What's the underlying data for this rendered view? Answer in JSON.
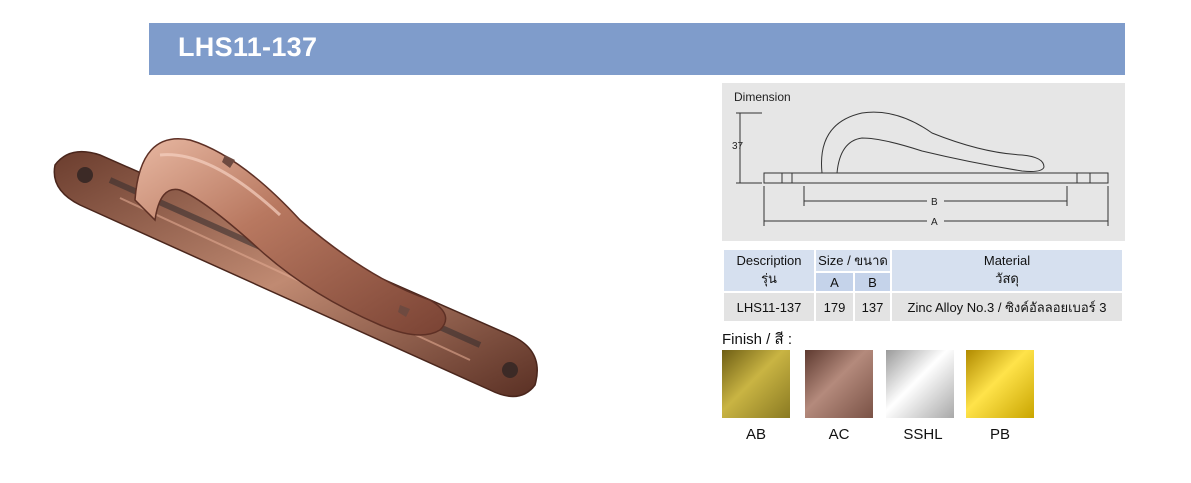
{
  "title": "LHS11-137",
  "dimension": {
    "title": "Dimension",
    "height_label": "37",
    "b_label": "B",
    "a_label": "A"
  },
  "table": {
    "description_header": "Description",
    "description_header_th": "รุ่น",
    "size_header": "Size / ขนาด",
    "col_a": "A",
    "col_b": "B",
    "material_header": "Material",
    "material_header_th": "วัสดุ",
    "model": "LHS11-137",
    "a_value": "179",
    "b_value": "137",
    "material": "Zinc Alloy No.3 / ซิงค์อัลลอยเบอร์ 3"
  },
  "finish": {
    "label": "Finish / สี :",
    "items": [
      {
        "code": "AB",
        "color": "#a8962e"
      },
      {
        "code": "AC",
        "color": "#9a6a5c"
      },
      {
        "code": "SSHL",
        "color": "#d9d9d9"
      },
      {
        "code": "PB",
        "color": "#e2c21f"
      }
    ]
  },
  "colors": {
    "title_bar": "#7f9ccb",
    "panel": "#e6e6e6",
    "table_header": "#d6e0ef",
    "copper": "#b87860"
  }
}
